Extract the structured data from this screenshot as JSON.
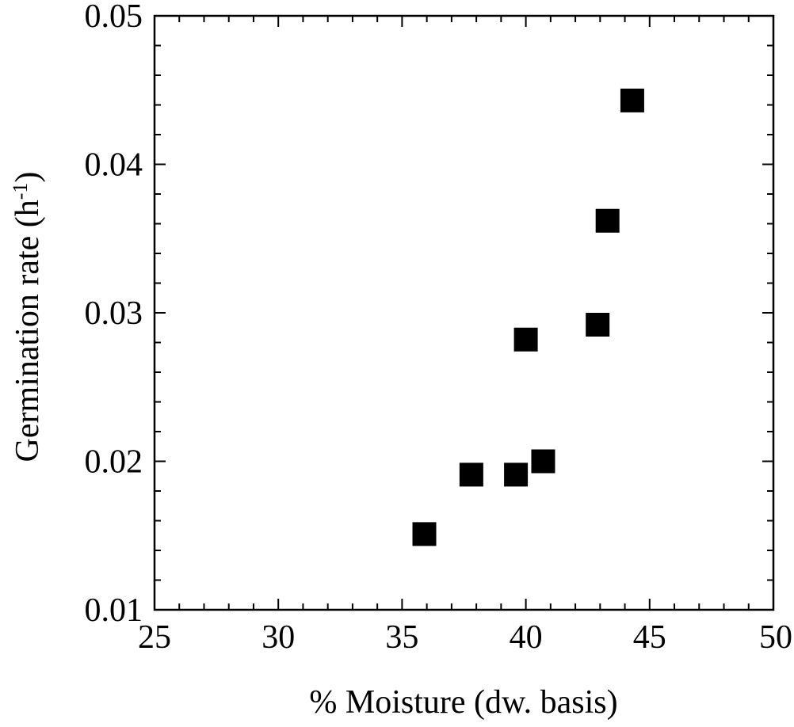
{
  "chart_data": {
    "type": "scatter",
    "xlabel": "% Moisture (dw. basis)",
    "ylabel": "Germination rate (h-1)",
    "ylabel_parts": {
      "main": "Germination rate (h",
      "superscript": "-1",
      "close": ")"
    },
    "xlim": [
      25,
      50
    ],
    "ylim": [
      0.01,
      0.05
    ],
    "xticks": [
      "25",
      "30",
      "35",
      "40",
      "45",
      "50"
    ],
    "yticks": [
      "0.01",
      "0.02",
      "0.03",
      "0.04",
      "0.05"
    ],
    "x_minor_step": 1,
    "y_minor_step": 0.002,
    "grid": false,
    "legend": "none",
    "marker": "filled-square",
    "marker_color": "#000000",
    "series": [
      {
        "points": [
          {
            "x": 35.9,
            "y": 0.0151
          },
          {
            "x": 37.8,
            "y": 0.0191
          },
          {
            "x": 39.6,
            "y": 0.0191
          },
          {
            "x": 40.7,
            "y": 0.02
          },
          {
            "x": 40.0,
            "y": 0.0282
          },
          {
            "x": 42.9,
            "y": 0.0292
          },
          {
            "x": 43.3,
            "y": 0.0362
          },
          {
            "x": 44.3,
            "y": 0.0443
          }
        ]
      }
    ]
  }
}
